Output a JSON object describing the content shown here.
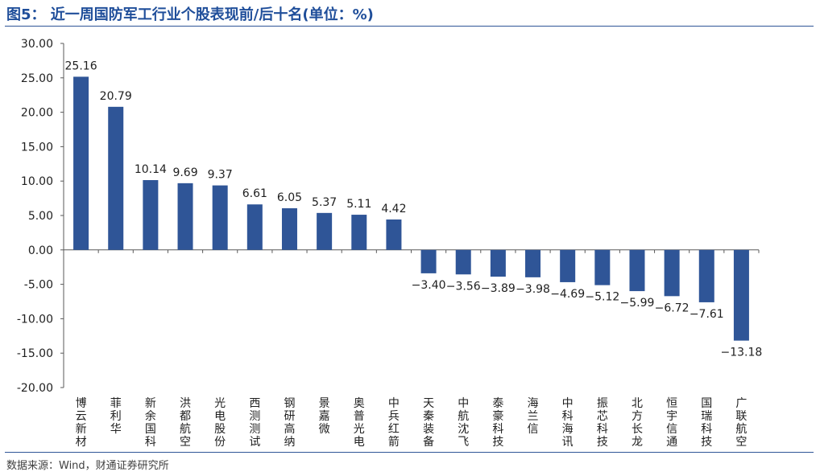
{
  "title": "图5：  近一周国防军工行业个股表现前/后十名(单位：%)",
  "source": "数据来源：Wind，财通证券研究所",
  "colors": {
    "bar": "#2f5597",
    "title": "#1f4e9a",
    "axis": "#595959"
  },
  "chart_data": {
    "type": "bar",
    "title": "近一周国防军工行业个股表现前/后十名(单位：%)",
    "xlabel": "",
    "ylabel": "",
    "ylim": [
      -20,
      30
    ],
    "yticks": [
      "30.00",
      "25.00",
      "20.00",
      "15.00",
      "10.00",
      "5.00",
      "0.00",
      "-5.00",
      "-10.00",
      "-15.00",
      "-20.00"
    ],
    "ytick_values": [
      30,
      25,
      20,
      15,
      10,
      5,
      0,
      -5,
      -10,
      -15,
      -20
    ],
    "grid": false,
    "categories": [
      "博云新材",
      "菲利华",
      "新余国科",
      "洪都航空",
      "光电股份",
      "西测测试",
      "钢研高纳",
      "景嘉微",
      "奥普光电",
      "中兵红箭",
      "天秦装备",
      "中航沈飞",
      "泰豪科技",
      "海兰信",
      "中科海讯",
      "振芯科技",
      "北方长龙",
      "恒宇信通",
      "国瑞科技",
      "广联航空"
    ],
    "values": [
      25.16,
      20.79,
      10.14,
      9.69,
      9.37,
      6.61,
      6.05,
      5.37,
      5.11,
      4.42,
      -3.4,
      -3.56,
      -3.89,
      -3.98,
      -4.69,
      -5.12,
      -5.99,
      -6.72,
      -7.61,
      -13.18
    ],
    "labels": [
      "25.16",
      "20.79",
      "10.14",
      "9.69",
      "9.37",
      "6.61",
      "6.05",
      "5.37",
      "5.11",
      "4.42",
      "−3.40",
      "−3.56",
      "−3.89",
      "−3.98",
      "−4.69",
      "−5.12",
      "−5.99",
      "−6.72",
      "−7.61",
      "−13.18"
    ]
  }
}
